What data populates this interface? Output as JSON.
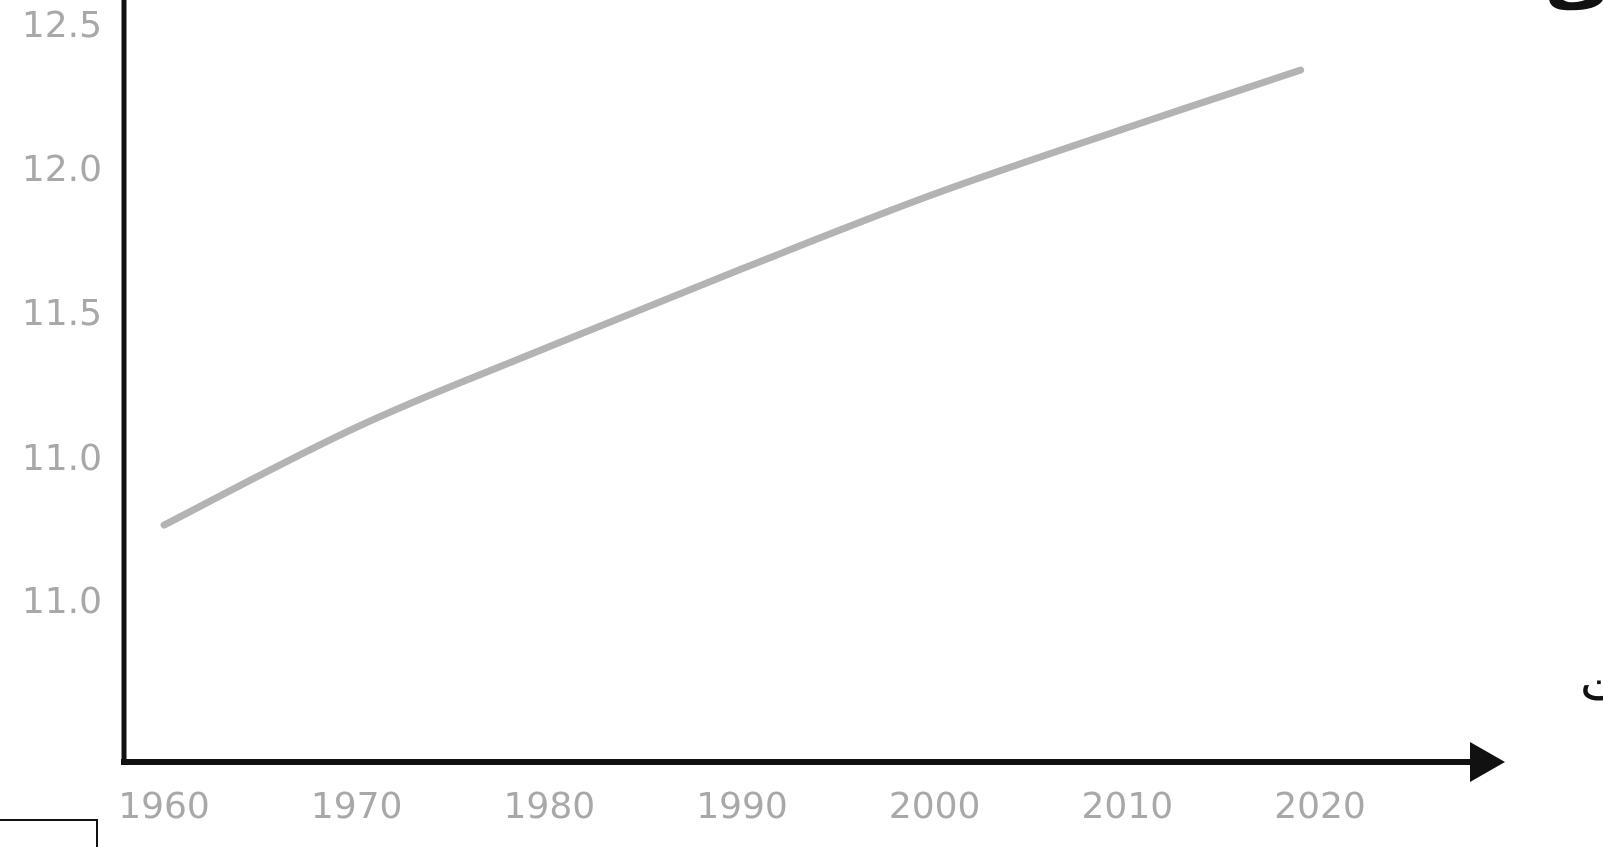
{
  "chart_data": {
    "type": "line",
    "title": "النظام البيئي في بحر آرال بدلالة السنوات",
    "xlabel": "السنوات",
    "ylabel": "",
    "x_ticks": [
      "1960",
      "1970",
      "1980",
      "1990",
      "2000",
      "2010",
      "2020"
    ],
    "y_ticks": [
      "12.5",
      "12.0",
      "11.5",
      "11.0",
      "11.0"
    ],
    "xlim": [
      1960,
      2020
    ],
    "grid": false,
    "legend": "none",
    "series": [
      {
        "x": [
          1960,
          1970,
          1980,
          1990,
          2000,
          2010,
          2019
        ],
        "y": [
          10.76,
          11.1,
          11.38,
          11.65,
          11.91,
          12.14,
          12.34
        ]
      }
    ]
  },
  "colors": {
    "line": "#b3b3b3",
    "axis": "#111111",
    "tick_text": "#a8a8a8",
    "title_text": "#111111"
  }
}
